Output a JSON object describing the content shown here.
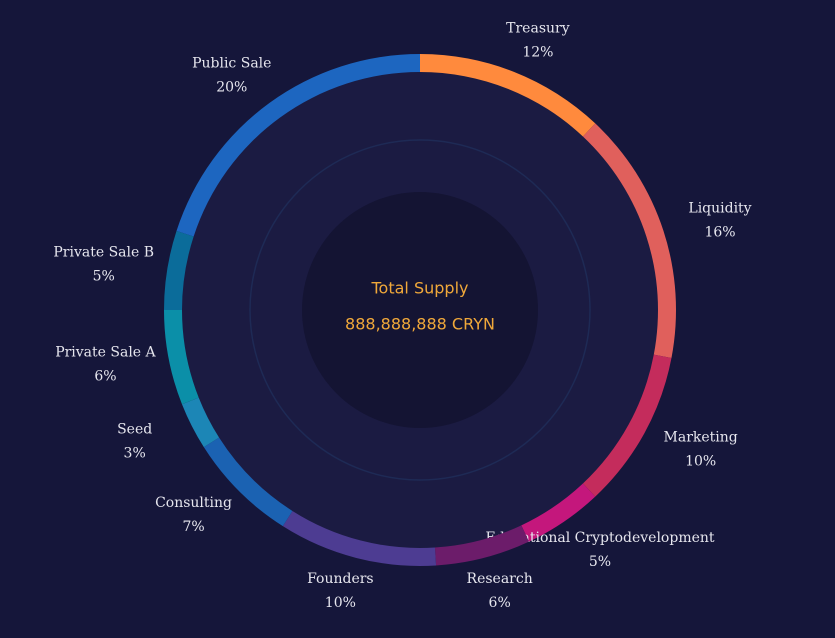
{
  "chart_data": {
    "type": "donut",
    "center_title": "Total Supply",
    "center_subtitle": "888,888,888 CRYN",
    "categories": [
      "Treasury",
      "Liquidity",
      "Marketing",
      "Educational Cryptodevelopment",
      "Research",
      "Founders",
      "Consulting",
      "Seed",
      "Private Sale A",
      "Private Sale B",
      "Public Sale"
    ],
    "values": [
      12,
      16,
      10,
      5,
      6,
      10,
      7,
      3,
      6,
      5,
      20
    ],
    "value_labels": [
      "12%",
      "16%",
      "10%",
      "5%",
      "6%",
      "10%",
      "7%",
      "3%",
      "6%",
      "5%",
      "20%"
    ],
    "colors": [
      "#ff8a3d",
      "#e0605c",
      "#c42c5c",
      "#c4177c",
      "#6c1c6a",
      "#4d3c92",
      "#1b62b2",
      "#1c86b6",
      "#0b8fa8",
      "#0b6c9a",
      "#1d66c0"
    ]
  }
}
